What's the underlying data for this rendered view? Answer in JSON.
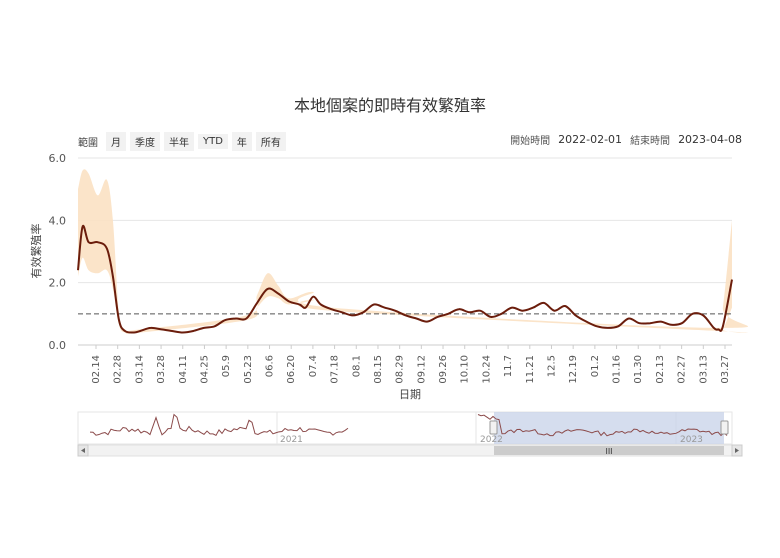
{
  "title": "本地個案的即時有效繁殖率",
  "toolbar": {
    "zoom_label": "範圍",
    "buttons": [
      "月",
      "季度",
      "半年",
      "YTD",
      "年",
      "所有"
    ]
  },
  "range": {
    "start_label": "開始時間",
    "start_value": "2022-02-01",
    "end_label": "結束時間",
    "end_value": "2023-04-08"
  },
  "navigator": {
    "year_labels": [
      "2021",
      "2022",
      "2023"
    ],
    "scroll_grip": "III"
  },
  "colors": {
    "line": "#6b1d0c",
    "band": "#fbe1c3",
    "dashed": "#555555",
    "navigator_shade": "#c7d2e8"
  },
  "chart_data": {
    "type": "line",
    "title": "本地個案的即時有效繁殖率",
    "xlabel": "日期",
    "ylabel": "有效繁殖率",
    "ylim": [
      0,
      6
    ],
    "yticks": [
      "0.0",
      "2.0",
      "4.0",
      "6.0"
    ],
    "xticks": [
      "02.14",
      "02.28",
      "03.14",
      "03.28",
      "04.11",
      "04.25",
      "05.9",
      "05.23",
      "06.6",
      "06.20",
      "07.4",
      "07.18",
      "08.1",
      "08.15",
      "08.29",
      "09.12",
      "09.26",
      "10.10",
      "10.24",
      "11.7",
      "11.21",
      "12.5",
      "12.19",
      "01.2",
      "01.16",
      "01.30",
      "02.13",
      "02.27",
      "03.13",
      "03.27"
    ],
    "reference_line": 1.0,
    "grid": "horizontal",
    "series": [
      {
        "role": "median",
        "points": [
          [
            "2022-02-01",
            2.4
          ],
          [
            "2022-02-04",
            3.8
          ],
          [
            "2022-02-08",
            3.3
          ],
          [
            "2022-02-14",
            3.3
          ],
          [
            "2022-02-20",
            3.1
          ],
          [
            "2022-02-24",
            2.2
          ],
          [
            "2022-02-28",
            0.8
          ],
          [
            "2022-03-04",
            0.45
          ],
          [
            "2022-03-10",
            0.4
          ],
          [
            "2022-03-14",
            0.45
          ],
          [
            "2022-03-21",
            0.55
          ],
          [
            "2022-03-28",
            0.5
          ],
          [
            "2022-04-04",
            0.45
          ],
          [
            "2022-04-11",
            0.4
          ],
          [
            "2022-04-18",
            0.45
          ],
          [
            "2022-04-25",
            0.55
          ],
          [
            "2022-05-02",
            0.6
          ],
          [
            "2022-05-09",
            0.8
          ],
          [
            "2022-05-16",
            0.85
          ],
          [
            "2022-05-23",
            0.85
          ],
          [
            "2022-05-30",
            1.35
          ],
          [
            "2022-06-06",
            1.8
          ],
          [
            "2022-06-13",
            1.65
          ],
          [
            "2022-06-20",
            1.4
          ],
          [
            "2022-06-27",
            1.3
          ],
          [
            "2022-07-01",
            1.2
          ],
          [
            "2022-07-06",
            1.55
          ],
          [
            "2022-07-11",
            1.3
          ],
          [
            "2022-07-18",
            1.15
          ],
          [
            "2022-07-25",
            1.05
          ],
          [
            "2022-08-01",
            0.95
          ],
          [
            "2022-08-08",
            1.05
          ],
          [
            "2022-08-15",
            1.3
          ],
          [
            "2022-08-22",
            1.2
          ],
          [
            "2022-08-29",
            1.1
          ],
          [
            "2022-09-05",
            0.95
          ],
          [
            "2022-09-12",
            0.85
          ],
          [
            "2022-09-19",
            0.75
          ],
          [
            "2022-09-26",
            0.9
          ],
          [
            "2022-10-03",
            1.0
          ],
          [
            "2022-10-10",
            1.15
          ],
          [
            "2022-10-17",
            1.05
          ],
          [
            "2022-10-24",
            1.1
          ],
          [
            "2022-10-31",
            0.9
          ],
          [
            "2022-11-07",
            1.0
          ],
          [
            "2022-11-14",
            1.2
          ],
          [
            "2022-11-21",
            1.1
          ],
          [
            "2022-11-28",
            1.2
          ],
          [
            "2022-12-05",
            1.35
          ],
          [
            "2022-12-12",
            1.1
          ],
          [
            "2022-12-19",
            1.25
          ],
          [
            "2022-12-26",
            0.95
          ],
          [
            "2023-01-02",
            0.75
          ],
          [
            "2023-01-09",
            0.6
          ],
          [
            "2023-01-16",
            0.55
          ],
          [
            "2023-01-23",
            0.6
          ],
          [
            "2023-01-30",
            0.85
          ],
          [
            "2023-02-06",
            0.7
          ],
          [
            "2023-02-13",
            0.7
          ],
          [
            "2023-02-20",
            0.75
          ],
          [
            "2023-02-27",
            0.65
          ],
          [
            "2023-03-06",
            0.7
          ],
          [
            "2023-03-13",
            1.0
          ],
          [
            "2023-03-20",
            0.95
          ],
          [
            "2023-03-27",
            0.55
          ],
          [
            "2023-03-30",
            0.5
          ],
          [
            "2023-04-02",
            0.6
          ],
          [
            "2023-04-08",
            2.1
          ]
        ]
      },
      {
        "role": "credible_interval",
        "points": [
          [
            "2022-02-01",
            [
              2.2,
              5.0
            ]
          ],
          [
            "2022-02-04",
            [
              2.8,
              5.6
            ]
          ],
          [
            "2022-02-08",
            [
              2.4,
              5.5
            ]
          ],
          [
            "2022-02-14",
            [
              2.3,
              4.8
            ]
          ],
          [
            "2022-02-20",
            [
              2.4,
              5.3
            ]
          ],
          [
            "2022-02-24",
            [
              1.8,
              4.0
            ]
          ],
          [
            "2022-02-28",
            [
              0.65,
              1.0
            ]
          ],
          [
            "2022-03-04",
            [
              0.4,
              0.5
            ]
          ],
          [
            "2022-03-14",
            [
              0.4,
              0.5
            ]
          ],
          [
            "2022-05-23",
            [
              0.8,
              0.95
            ]
          ],
          [
            "2022-05-30",
            [
              1.2,
              1.6
            ]
          ],
          [
            "2022-06-06",
            [
              1.55,
              2.3
            ]
          ],
          [
            "2022-06-13",
            [
              1.5,
              1.9
            ]
          ],
          [
            "2022-06-20",
            [
              1.3,
              1.5
            ]
          ],
          [
            "2022-07-06",
            [
              1.45,
              1.7
            ]
          ],
          [
            "2022-07-18",
            [
              1.1,
              1.2
            ]
          ],
          [
            "2023-03-30",
            [
              0.45,
              0.55
            ]
          ],
          [
            "2023-04-02",
            [
              0.5,
              1.2
            ]
          ],
          [
            "2023-04-08",
            [
              1.2,
              4.0
            ]
          ]
        ]
      }
    ]
  }
}
